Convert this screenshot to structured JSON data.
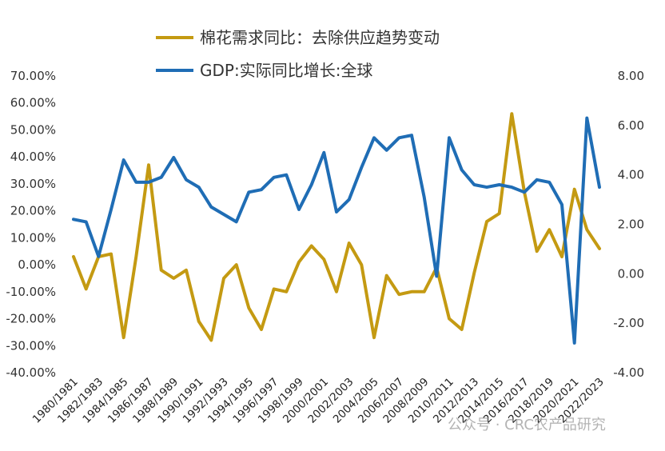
{
  "chart_data": {
    "type": "line",
    "categories": [
      "1980/1981",
      "1981/1982",
      "1982/1983",
      "1983/1984",
      "1984/1985",
      "1985/1986",
      "1986/1987",
      "1987/1988",
      "1988/1989",
      "1989/1990",
      "1990/1991",
      "1991/1992",
      "1992/1993",
      "1993/1994",
      "1994/1995",
      "1995/1996",
      "1996/1997",
      "1997/1998",
      "1998/1999",
      "1999/2000",
      "2000/2001",
      "2001/2002",
      "2002/2003",
      "2003/2004",
      "2004/2005",
      "2005/2006",
      "2006/2007",
      "2007/2008",
      "2008/2009",
      "2009/2010",
      "2010/2011",
      "2011/2012",
      "2012/2013",
      "2013/2014",
      "2014/2015",
      "2015/2016",
      "2016/2017",
      "2017/2018",
      "2018/2019",
      "2019/2020",
      "2020/2021",
      "2021/2022",
      "2022/2023"
    ],
    "x_tick_labels": [
      "1980/1981",
      "1982/1983",
      "1984/1985",
      "1986/1987",
      "1988/1989",
      "1990/1991",
      "1992/1993",
      "1994/1995",
      "1996/1997",
      "1998/1999",
      "2000/2001",
      "2002/2003",
      "2004/2005",
      "2006/2007",
      "2008/2009",
      "2010/2011",
      "2012/2013",
      "2014/2015",
      "2016/2017",
      "2018/2019",
      "2020/2021",
      "2022/2023"
    ],
    "series": [
      {
        "name": "棉花需求同比：去除供应趋势变动",
        "axis": "left",
        "color": "#C49A12",
        "values": [
          3,
          -9,
          3,
          4,
          -27,
          3,
          37,
          -2,
          -5,
          -2,
          -21,
          -28,
          -5,
          0,
          -16,
          -24,
          -9,
          -10,
          1,
          7,
          2,
          -10,
          8,
          0,
          -27,
          -4,
          -11,
          -10,
          -10,
          -1,
          -20,
          -24,
          -3,
          16,
          19,
          56,
          27,
          5,
          13,
          3,
          28,
          13,
          6
        ]
      },
      {
        "name": "GDP:实际同比增长:全球",
        "axis": "right",
        "color": "#1F6DB5",
        "values": [
          2.2,
          2.1,
          0.7,
          2.6,
          4.6,
          3.7,
          3.7,
          3.9,
          4.7,
          3.8,
          3.5,
          2.7,
          2.4,
          2.1,
          3.3,
          3.4,
          3.9,
          4.0,
          2.6,
          3.6,
          4.9,
          2.5,
          3.0,
          4.3,
          5.5,
          5.0,
          5.5,
          5.6,
          3.1,
          -0.1,
          5.5,
          4.2,
          3.6,
          3.5,
          3.6,
          3.5,
          3.3,
          3.8,
          3.7,
          2.8,
          -2.8,
          6.3,
          3.5
        ]
      }
    ],
    "y_left": {
      "ylim": [
        -40,
        70
      ],
      "ticks": [
        "-40.00%",
        "-30.00%",
        "-20.00%",
        "-10.00%",
        "0.00%",
        "10.00%",
        "20.00%",
        "30.00%",
        "40.00%",
        "50.00%",
        "60.00%",
        "70.00%"
      ]
    },
    "y_right": {
      "ylim": [
        -4,
        8
      ],
      "ticks": [
        "-4.00",
        "-2.00",
        "0.00",
        "2.00",
        "4.00",
        "6.00",
        "8.00"
      ]
    },
    "legend": "top-center",
    "grid": false,
    "watermark": "公众号 · CRC农产品研究"
  }
}
